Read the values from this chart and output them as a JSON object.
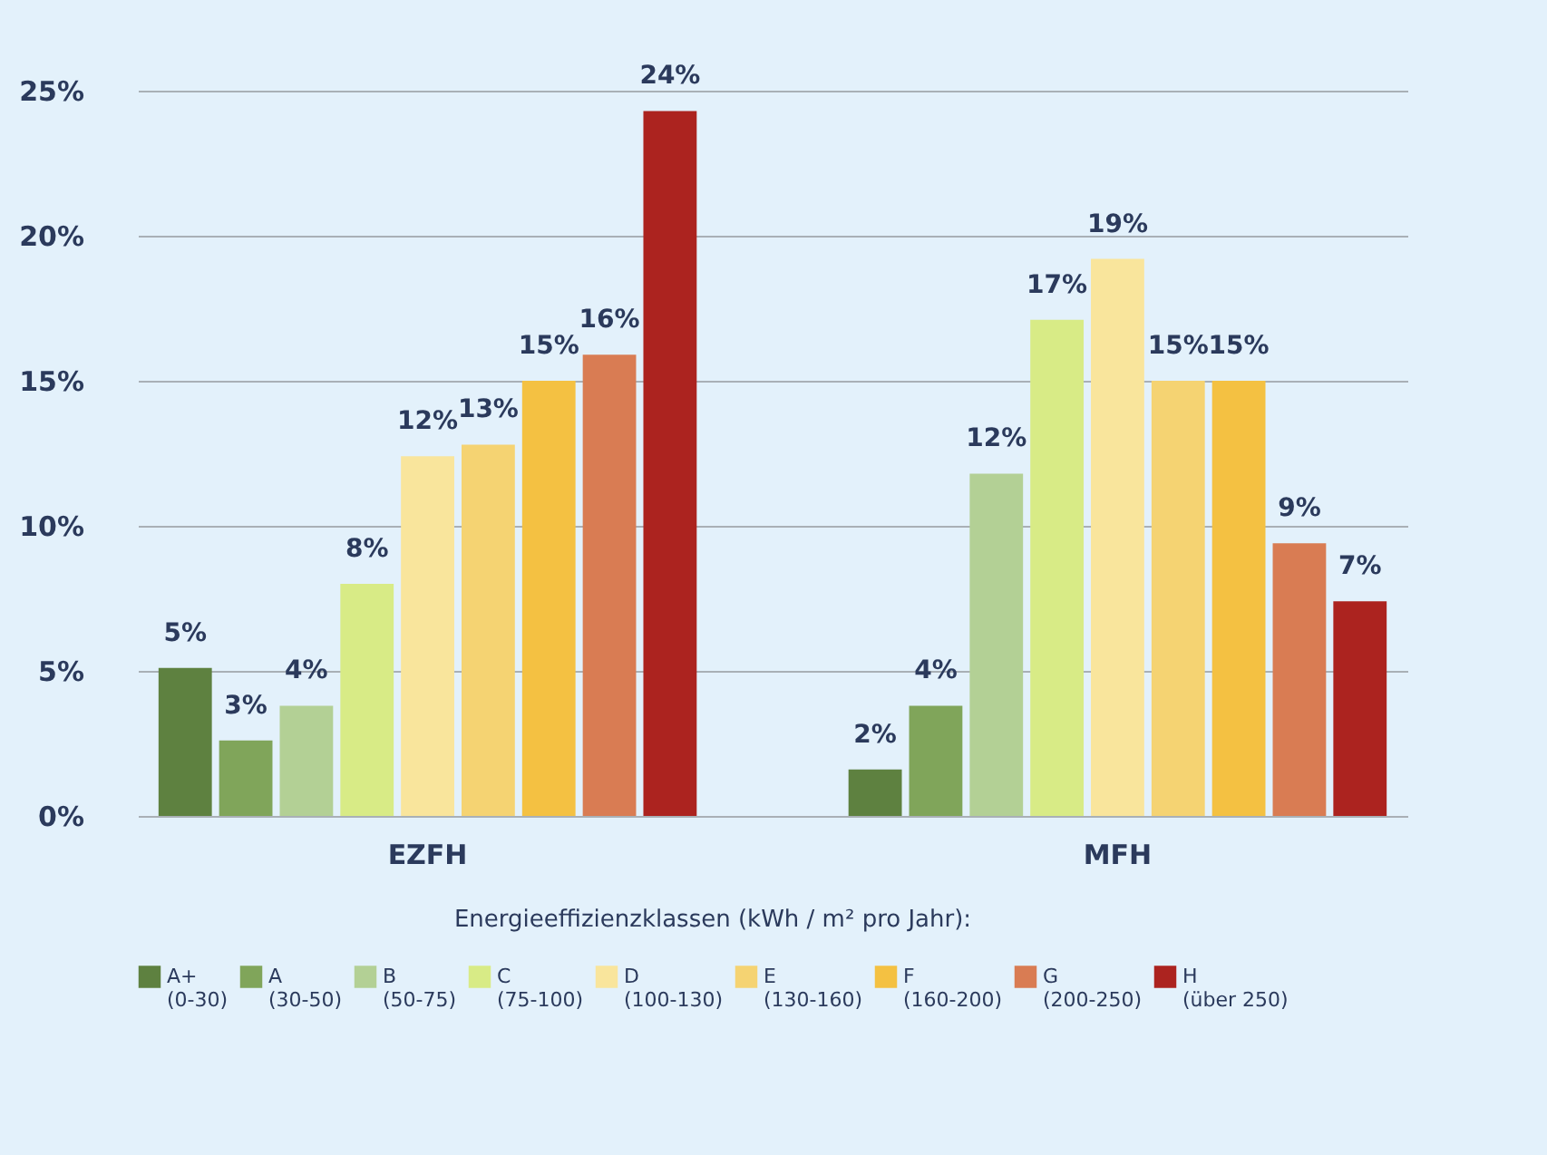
{
  "chart_data": {
    "type": "bar",
    "categories": [
      "EZFH",
      "MFH"
    ],
    "legend_title": "Energieeffizienzklassen (kWh / m² pro Jahr):",
    "legend": "bottom",
    "grid": "y",
    "ylim": [
      0,
      25
    ],
    "yticks": [
      {
        "value": 0,
        "label": "0%"
      },
      {
        "value": 5,
        "label": "5%"
      },
      {
        "value": 10,
        "label": "10%"
      },
      {
        "value": 15,
        "label": "15%"
      },
      {
        "value": 20,
        "label": "20%"
      },
      {
        "value": 25,
        "label": "25%"
      }
    ],
    "series": [
      {
        "name": "A+\n(0-30)",
        "color": "#5e8140",
        "values": [
          5.1,
          1.6
        ],
        "value_labels": [
          "5%",
          "2%"
        ]
      },
      {
        "name": "A\n(30-50)",
        "color": "#80a55a",
        "values": [
          2.6,
          3.8
        ],
        "value_labels": [
          "3%",
          "4%"
        ]
      },
      {
        "name": "B\n(50-75)",
        "color": "#b3d095",
        "values": [
          3.8,
          11.8
        ],
        "value_labels": [
          "4%",
          "12%"
        ]
      },
      {
        "name": "C\n(75-100)",
        "color": "#d8eb86",
        "values": [
          8.0,
          17.1
        ],
        "value_labels": [
          "8%",
          "17%"
        ]
      },
      {
        "name": "D\n(100-130)",
        "color": "#f9e59c",
        "values": [
          12.4,
          19.2
        ],
        "value_labels": [
          "12%",
          "19%"
        ]
      },
      {
        "name": "E\n(130-160)",
        "color": "#f5d372",
        "values": [
          12.8,
          15.0
        ],
        "value_labels": [
          "13%",
          "15%"
        ]
      },
      {
        "name": "F\n(160-200)",
        "color": "#f4c142",
        "values": [
          15.0,
          15.0
        ],
        "value_labels": [
          "15%",
          "15%"
        ]
      },
      {
        "name": "G\n(200-250)",
        "color": "#d97c53",
        "values": [
          15.9,
          9.4
        ],
        "value_labels": [
          "16%",
          "9%"
        ]
      },
      {
        "name": "H\n(über 250)",
        "color": "#ac231f",
        "values": [
          24.3,
          7.4
        ],
        "value_labels": [
          "24%",
          "7%"
        ]
      }
    ]
  }
}
